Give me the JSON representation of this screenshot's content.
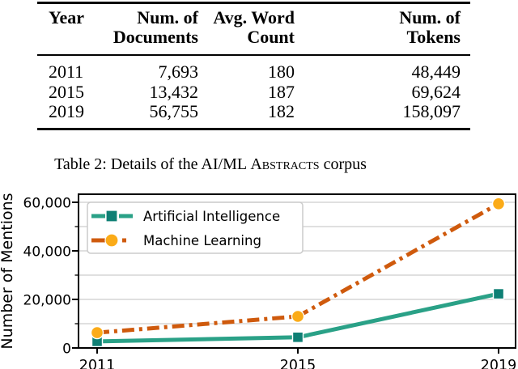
{
  "table": {
    "columns": [
      {
        "line1": "Year",
        "line2": ""
      },
      {
        "line1": "Num. of",
        "line2": "Documents"
      },
      {
        "line1": "Avg. Word",
        "line2": "Count"
      },
      {
        "line1": "Num. of",
        "line2": "Tokens"
      }
    ],
    "rows": [
      [
        "2011",
        "7,693",
        "180",
        "48,449"
      ],
      [
        "2015",
        "13,432",
        "187",
        "69,624"
      ],
      [
        "2019",
        "56,755",
        "182",
        "158,097"
      ]
    ]
  },
  "caption": {
    "prefix": "Table 2: Details of the AI/ML ",
    "corpus_name": "Abstracts",
    "suffix": " corpus"
  },
  "chart_data": {
    "type": "line",
    "x": [
      2011,
      2015,
      2019
    ],
    "x_ticks": [
      "2011",
      "2015",
      "2019"
    ],
    "series": [
      {
        "name": "Artificial Intelligence",
        "values": [
          2700,
          4400,
          22300
        ],
        "color": "#2aa187",
        "marker_color": "#0e7f74",
        "marker": "square",
        "line_style": "solid"
      },
      {
        "name": "Machine Learning",
        "values": [
          6300,
          13000,
          59400
        ],
        "color": "#cf5a0d",
        "marker_color": "#fbab18",
        "marker": "circle",
        "line_style": "dashdot"
      }
    ],
    "title": "",
    "xlabel": "",
    "ylabel": "Number of Mentions",
    "y_ticks": [
      "0",
      "20,000",
      "40,000",
      "60,000"
    ],
    "y_tick_values": [
      0,
      20000,
      40000,
      60000
    ],
    "y_minor_tick_values": [
      10000,
      30000,
      50000
    ],
    "ylim": [
      0,
      63333
    ],
    "grid": "horizontal",
    "grid_color": "#d5d5d5",
    "legend_position": "upper left",
    "legend_border_color": "#cbcbcb",
    "axis_color": "#000000"
  }
}
